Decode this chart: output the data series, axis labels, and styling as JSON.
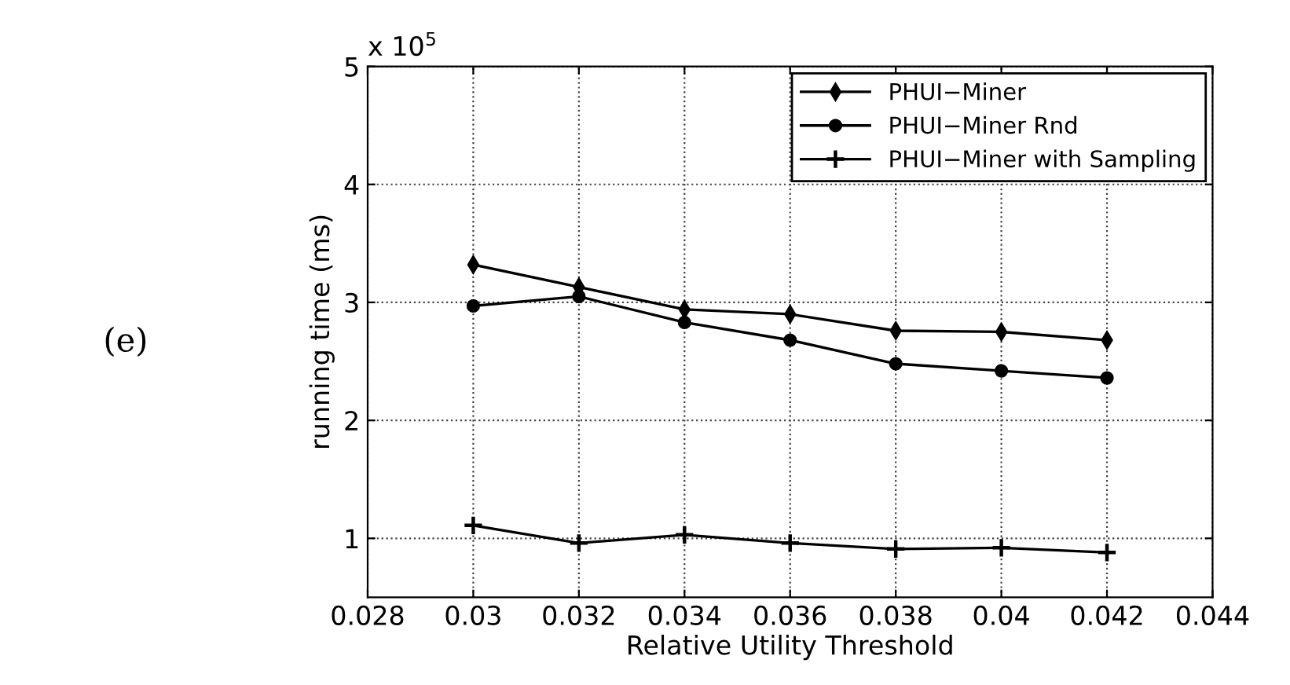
{
  "chart_data": {
    "type": "line",
    "xlabel": "Relative Utility Threshold",
    "ylabel": "running time (ms)",
    "annotations": [
      "(e)",
      "x 10$^{5}$"
    ],
    "x": [
      0.03,
      0.032,
      0.034,
      0.036,
      0.038,
      0.04,
      0.042
    ],
    "series": [
      {
        "name": "PHUI−Miner",
        "color": "#000000",
        "marker": "diamond",
        "values": [
          3.32,
          3.13,
          2.94,
          2.9,
          2.76,
          2.75,
          2.68
        ]
      },
      {
        "name": "PHUI−Miner Rnd",
        "color": "#000000",
        "marker": "circle",
        "values": [
          2.97,
          3.05,
          2.83,
          2.68,
          2.48,
          2.42,
          2.36
        ]
      },
      {
        "name": "PHUI−Miner with Sampling",
        "color": "#000000",
        "marker": "cross",
        "values": [
          1.11,
          0.96,
          1.03,
          0.96,
          0.91,
          0.92,
          0.88
        ]
      }
    ],
    "xlim": [
      0.028,
      0.044
    ],
    "xticks": [
      0.028,
      0.03,
      0.032,
      0.034,
      0.036,
      0.038,
      0.04,
      0.042,
      0.044
    ],
    "ylim": [
      0.5,
      5
    ],
    "yticks": [
      1,
      2,
      3,
      4,
      5
    ],
    "grid": true,
    "legend": "top right",
    "line_style": "solid"
  }
}
